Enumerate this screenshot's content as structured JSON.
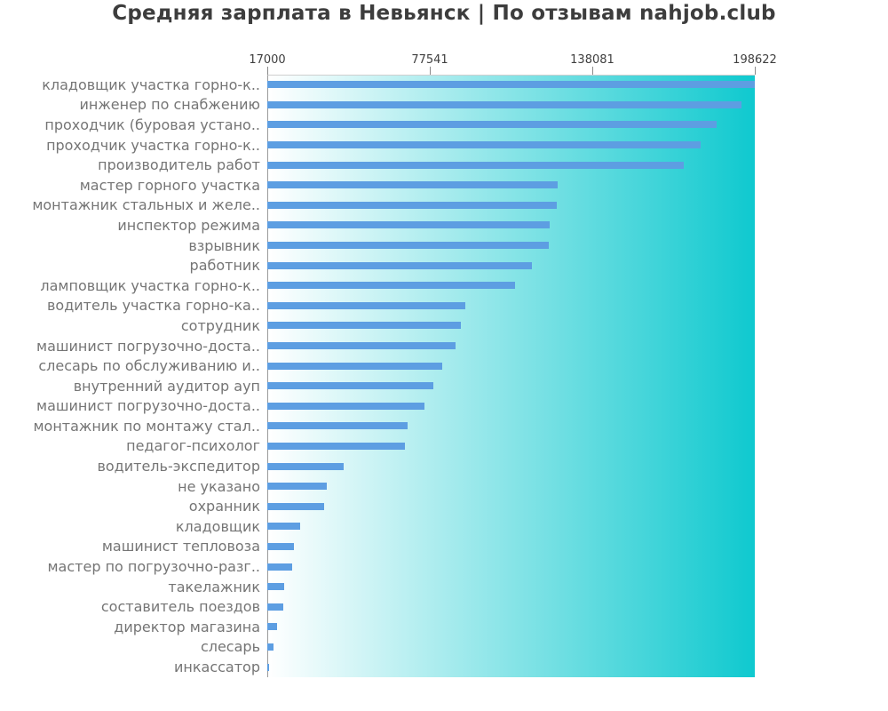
{
  "chart_data": {
    "type": "bar",
    "orientation": "horizontal",
    "title": "Средняя зарплата в Невьянск | По отзывам nahjob.club",
    "xlabel": "",
    "ylabel": "",
    "xlim": [
      17000,
      198622
    ],
    "x_ticks": [
      17000,
      77541,
      138081,
      198622
    ],
    "x_tick_labels": [
      "17000",
      "77541",
      "138081",
      "198622"
    ],
    "grid": false,
    "legend": false,
    "axis_position": "top",
    "bar_color": "#5d9ee2",
    "plot_bg_gradient": [
      "#ffffff",
      "#0fc9cf"
    ],
    "axis_color": "#9a9a9a",
    "tick_label_color": "#3f3f3f",
    "category_label_color": "#757575",
    "title_color": "#3d3d3d",
    "categories": [
      "кладовщик участка горно-к..",
      "инженер по снабжению",
      "проходчик (буровая устано..",
      "проходчик участка горно-к..",
      "производитель работ",
      "мастер горного участка",
      "монтажник стальных и желе..",
      "инспектор режима",
      "взрывник",
      "работник",
      "ламповщик участка горно-к..",
      "водитель участка горно-ка..",
      "сотрудник",
      "машинист погрузочно-доста..",
      "слесарь по обслуживанию и..",
      "внутренний аудитор ауп",
      "машинист погрузочно-доста..",
      "монтажник по монтажу стал..",
      "педагог-психолог",
      "водитель-экспедитор",
      "не указано",
      "охранник",
      "кладовщик",
      "машинист тепловоза",
      "мастер по погрузочно-разг..",
      "такелажник",
      "составитель поездов",
      "директор магазина",
      "слесарь",
      "инкассатор"
    ],
    "values": [
      198622,
      193600,
      184400,
      178400,
      172100,
      125200,
      124800,
      122200,
      121900,
      115600,
      109300,
      90800,
      89100,
      87100,
      82200,
      78900,
      75600,
      69300,
      68300,
      45400,
      39200,
      38200,
      29200,
      26900,
      26300,
      23300,
      23100,
      20600,
      19300,
      17700
    ]
  }
}
